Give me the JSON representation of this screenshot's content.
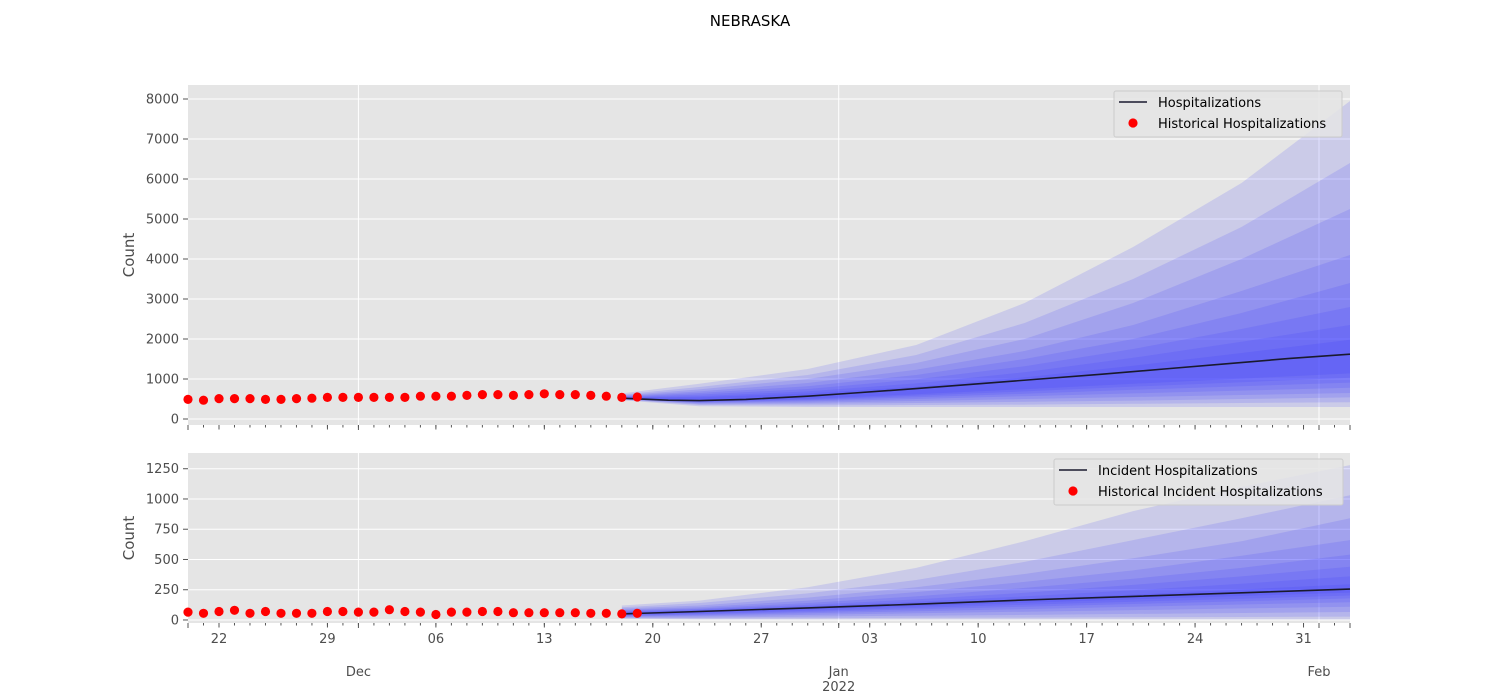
{
  "figure_title": "NEBRASKA",
  "colors": {
    "band": "#3333ff",
    "median": "#1a1a2e",
    "historical": "#ff0000",
    "panel_bg": "#e5e5e5",
    "grid": "#ffffff"
  },
  "x_axis": {
    "start": "2021-11-20",
    "end": "2022-02-03",
    "minor_labels": [
      "22",
      "29",
      "06",
      "13",
      "20",
      "27",
      "03",
      "10",
      "17",
      "24",
      "31"
    ],
    "month_labels": [
      "Dec",
      "Jan",
      "Feb"
    ],
    "year_label": "2022"
  },
  "chart_data": [
    {
      "type": "area",
      "ylabel": "Count",
      "ylim": [
        -150,
        8350
      ],
      "yticks": [
        0,
        1000,
        2000,
        3000,
        4000,
        5000,
        6000,
        7000,
        8000
      ],
      "grid": true,
      "legend_position": "top-right",
      "series": [
        {
          "name": "Hospitalizations",
          "kind": "median-line",
          "x": [
            "2021-12-18",
            "2021-12-21",
            "2021-12-23",
            "2021-12-26",
            "2021-12-30",
            "2022-01-02",
            "2022-01-06",
            "2022-01-10",
            "2022-01-14",
            "2022-01-18",
            "2022-01-22",
            "2022-01-26",
            "2022-01-30",
            "2022-02-03"
          ],
          "y": [
            520,
            470,
            460,
            490,
            570,
            650,
            760,
            880,
            1000,
            1120,
            1250,
            1380,
            1510,
            1620
          ]
        },
        {
          "name": "Historical Hospitalizations",
          "kind": "scatter",
          "x": [
            "2021-11-20",
            "2021-11-21",
            "2021-11-22",
            "2021-11-23",
            "2021-11-24",
            "2021-11-25",
            "2021-11-26",
            "2021-11-27",
            "2021-11-28",
            "2021-11-29",
            "2021-11-30",
            "2021-12-01",
            "2021-12-02",
            "2021-12-03",
            "2021-12-04",
            "2021-12-05",
            "2021-12-06",
            "2021-12-07",
            "2021-12-08",
            "2021-12-09",
            "2021-12-10",
            "2021-12-11",
            "2021-12-12",
            "2021-12-13",
            "2021-12-14",
            "2021-12-15",
            "2021-12-16",
            "2021-12-17",
            "2021-12-18",
            "2021-12-19"
          ],
          "y": [
            490,
            470,
            510,
            510,
            510,
            490,
            490,
            510,
            520,
            540,
            540,
            540,
            540,
            540,
            540,
            570,
            570,
            570,
            590,
            610,
            610,
            590,
            610,
            630,
            610,
            610,
            590,
            570,
            540,
            550
          ]
        }
      ],
      "bands": {
        "x": [
          "2021-12-18",
          "2021-12-23",
          "2021-12-30",
          "2022-01-06",
          "2022-01-13",
          "2022-01-20",
          "2022-01-27",
          "2022-02-03"
        ],
        "levels": [
          {
            "lower": [
              470,
              320,
              300,
              300,
              300,
              300,
              300,
              300
            ],
            "upper": [
              640,
              880,
              1250,
              1850,
              2900,
              4300,
              5900,
              7950
            ]
          },
          {
            "lower": [
              480,
              350,
              340,
              350,
              360,
              380,
              400,
              420
            ],
            "upper": [
              610,
              800,
              1100,
              1600,
              2400,
              3500,
              4800,
              6400
            ]
          },
          {
            "lower": [
              490,
              370,
              380,
              400,
              430,
              460,
              500,
              540
            ],
            "upper": [
              590,
              740,
              1000,
              1400,
              2000,
              2900,
              4000,
              5250
            ]
          },
          {
            "lower": [
              495,
              390,
              410,
              450,
              500,
              550,
              600,
              650
            ],
            "upper": [
              575,
              690,
              900,
              1230,
              1700,
              2350,
              3200,
              4100
            ]
          },
          {
            "lower": [
              500,
              405,
              440,
              500,
              570,
              640,
              710,
              780
            ],
            "upper": [
              560,
              650,
              820,
              1100,
              1500,
              2000,
              2650,
              3400
            ]
          },
          {
            "lower": [
              505,
              420,
              465,
              545,
              630,
              730,
              820,
              910
            ],
            "upper": [
              550,
              610,
              750,
              990,
              1320,
              1750,
              2250,
              2800
            ]
          },
          {
            "lower": [
              508,
              430,
              485,
              585,
              690,
              810,
              920,
              1030
            ],
            "upper": [
              540,
              570,
              690,
              890,
              1170,
              1530,
              1930,
              2350
            ]
          },
          {
            "lower": [
              510,
              440,
              505,
              620,
              745,
              880,
              1010,
              1140
            ],
            "upper": [
              532,
              540,
              640,
              810,
              1040,
              1330,
              1650,
              1980
            ]
          }
        ]
      }
    },
    {
      "type": "area",
      "ylabel": "Count",
      "ylim": [
        -25,
        1380
      ],
      "yticks": [
        0,
        250,
        500,
        750,
        1000,
        1250
      ],
      "grid": true,
      "legend_position": "top-right",
      "series": [
        {
          "name": "Incident Hospitalizations",
          "kind": "median-line",
          "x": [
            "2021-12-18",
            "2021-12-23",
            "2021-12-30",
            "2022-01-06",
            "2022-01-13",
            "2022-01-20",
            "2022-01-27",
            "2022-02-03"
          ],
          "y": [
            50,
            70,
            100,
            130,
            165,
            195,
            225,
            255
          ]
        },
        {
          "name": "Historical Incident Hospitalizations",
          "kind": "scatter",
          "x": [
            "2021-11-20",
            "2021-11-21",
            "2021-11-22",
            "2021-11-23",
            "2021-11-24",
            "2021-11-25",
            "2021-11-26",
            "2021-11-27",
            "2021-11-28",
            "2021-11-29",
            "2021-11-30",
            "2021-12-01",
            "2021-12-02",
            "2021-12-03",
            "2021-12-04",
            "2021-12-05",
            "2021-12-06",
            "2021-12-07",
            "2021-12-08",
            "2021-12-09",
            "2021-12-10",
            "2021-12-11",
            "2021-12-12",
            "2021-12-13",
            "2021-12-14",
            "2021-12-15",
            "2021-12-16",
            "2021-12-17",
            "2021-12-18",
            "2021-12-19"
          ],
          "y": [
            65,
            55,
            70,
            80,
            55,
            70,
            55,
            55,
            55,
            70,
            70,
            65,
            65,
            85,
            70,
            65,
            45,
            65,
            65,
            70,
            70,
            60,
            60,
            60,
            60,
            60,
            55,
            55,
            50,
            55
          ]
        }
      ],
      "bands": {
        "x": [
          "2021-12-18",
          "2021-12-23",
          "2021-12-30",
          "2022-01-06",
          "2022-01-13",
          "2022-01-20",
          "2022-01-27",
          "2022-02-03"
        ],
        "levels": [
          {
            "lower": [
              10,
              5,
              5,
              5,
              5,
              5,
              5,
              5
            ],
            "upper": [
              120,
              160,
              270,
              430,
              650,
              900,
              1100,
              1280
            ]
          },
          {
            "lower": [
              15,
              12,
              15,
              18,
              20,
              22,
              25,
              28
            ],
            "upper": [
              105,
              140,
              220,
              330,
              480,
              660,
              840,
              1030
            ]
          },
          {
            "lower": [
              20,
              20,
              28,
              35,
              42,
              50,
              58,
              66
            ],
            "upper": [
              95,
              120,
              185,
              270,
              380,
              510,
              650,
              840
            ]
          },
          {
            "lower": [
              25,
              30,
              42,
              55,
              68,
              82,
              96,
              110
            ],
            "upper": [
              85,
              105,
              160,
              230,
              315,
              410,
              530,
              660
            ]
          },
          {
            "lower": [
              30,
              38,
              55,
              72,
              90,
              110,
              128,
              146
            ],
            "upper": [
              78,
              95,
              140,
              195,
              265,
              340,
              430,
              540
            ]
          },
          {
            "lower": [
              35,
              45,
              66,
              87,
              110,
              132,
              155,
              178
            ],
            "upper": [
              70,
              88,
              125,
              170,
              225,
              290,
              360,
              440
            ]
          },
          {
            "lower": [
              40,
              52,
              76,
              100,
              126,
              151,
              176,
              202
            ],
            "upper": [
              64,
              82,
              114,
              150,
              195,
              245,
              300,
              360
            ]
          },
          {
            "lower": [
              45,
              60,
              87,
              114,
              142,
              170,
              198,
              226
            ],
            "upper": [
              58,
              78,
              106,
              135,
              172,
              210,
              252,
              295
            ]
          }
        ]
      }
    }
  ]
}
